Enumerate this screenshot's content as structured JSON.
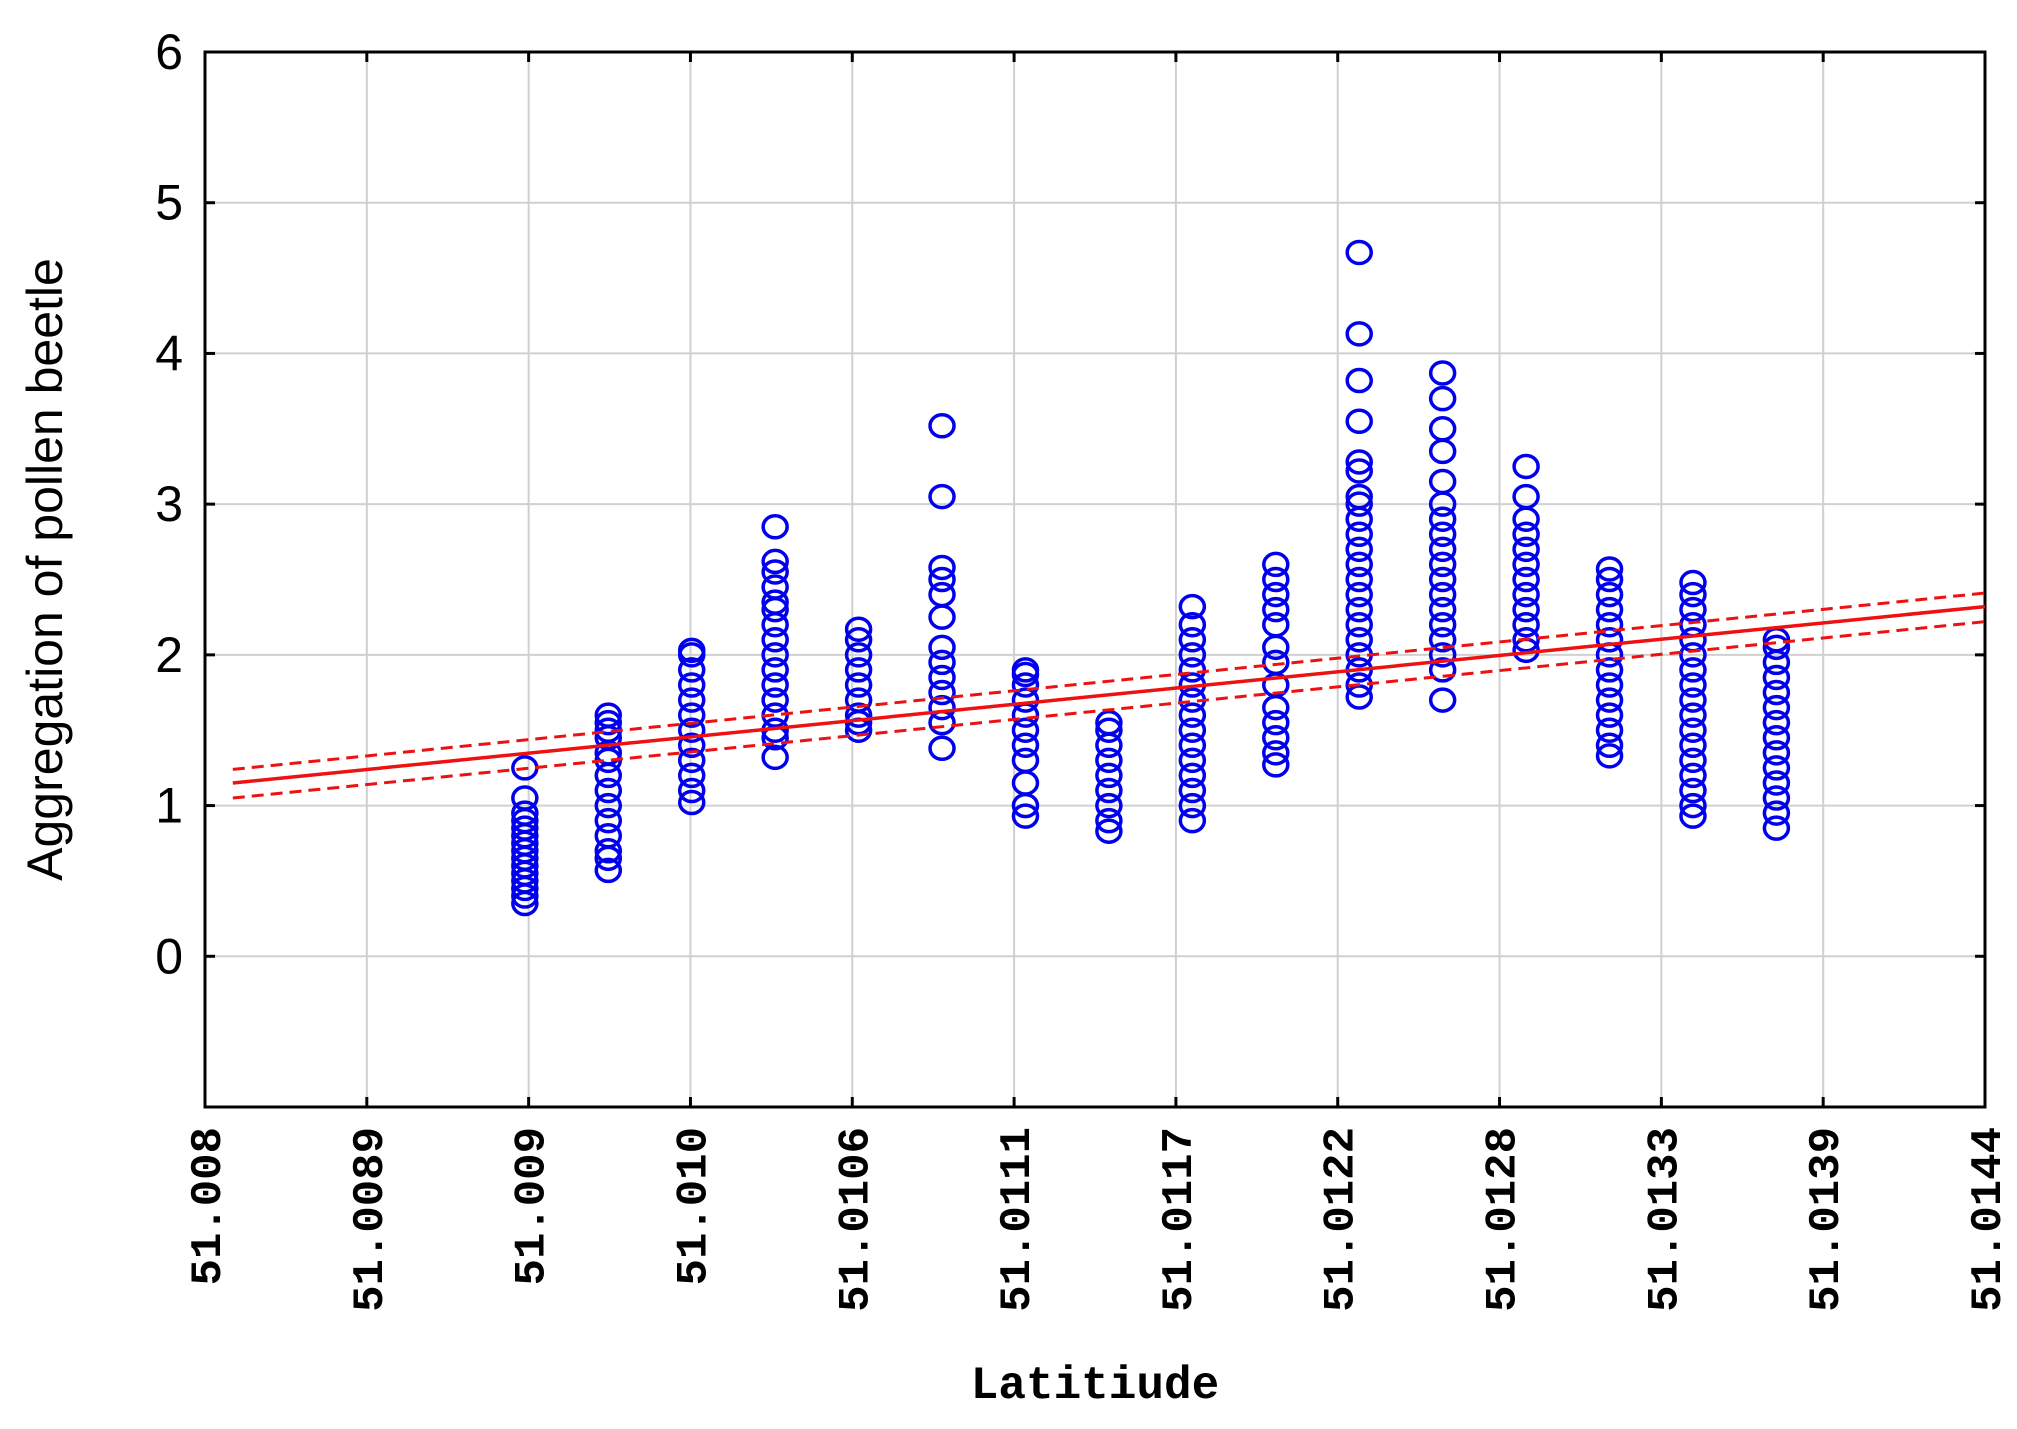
{
  "chart_data": {
    "type": "scatter",
    "title": "",
    "xlabel": "Latitiude",
    "ylabel": "Aggregation of pollen beetle",
    "x_tick_labels": [
      "51.008",
      "51.0089",
      "51.009",
      "51.010",
      "51.0106",
      "51.0111",
      "51.0117",
      "51.0122",
      "51.0128",
      "51.0133",
      "51.0139",
      "51.0144"
    ],
    "y_tick_labels": [
      "0",
      "1",
      "2",
      "3",
      "4",
      "5",
      "6"
    ],
    "y_ticks": [
      0,
      1,
      2,
      3,
      4,
      5,
      6
    ],
    "ylim": [
      -1,
      6
    ],
    "grid": true,
    "marker_color": "#0000ee",
    "fit_color": "#ee1111",
    "scatter_groups": [
      {
        "x": 51.00915,
        "y": [
          0.35,
          0.4,
          0.45,
          0.5,
          0.55,
          0.6,
          0.65,
          0.7,
          0.75,
          0.8,
          0.85,
          0.9,
          0.95,
          1.05,
          1.25
        ]
      },
      {
        "x": 51.00945,
        "y": [
          0.57,
          0.65,
          0.7,
          0.8,
          0.9,
          1.0,
          1.1,
          1.2,
          1.3,
          1.35,
          1.45,
          1.5,
          1.55,
          1.6
        ]
      },
      {
        "x": 51.00975,
        "y": [
          1.02,
          1.1,
          1.2,
          1.3,
          1.4,
          1.5,
          1.6,
          1.7,
          1.8,
          1.9,
          2.0,
          2.03
        ]
      },
      {
        "x": 51.01005,
        "y": [
          1.32,
          1.45,
          1.5,
          1.6,
          1.7,
          1.8,
          1.9,
          2.0,
          2.1,
          2.2,
          2.3,
          2.35,
          2.45,
          2.55,
          2.62,
          2.85
        ]
      },
      {
        "x": 51.01035,
        "y": [
          1.5,
          1.55,
          1.6,
          1.7,
          1.8,
          1.9,
          2.0,
          2.1,
          2.17
        ]
      },
      {
        "x": 51.01065,
        "y": [
          1.38,
          1.55,
          1.65,
          1.75,
          1.85,
          1.95,
          2.05,
          2.25,
          2.4,
          2.5,
          2.58,
          3.05,
          3.52
        ]
      },
      {
        "x": 51.01095,
        "y": [
          0.93,
          1.0,
          1.15,
          1.3,
          1.4,
          1.5,
          1.6,
          1.7,
          1.8,
          1.87,
          1.9
        ]
      },
      {
        "x": 51.01125,
        "y": [
          0.83,
          0.9,
          1.0,
          1.1,
          1.2,
          1.3,
          1.4,
          1.5,
          1.55
        ]
      },
      {
        "x": 51.01155,
        "y": [
          0.9,
          1.0,
          1.1,
          1.2,
          1.3,
          1.4,
          1.5,
          1.6,
          1.7,
          1.8,
          1.9,
          2.0,
          2.1,
          2.2,
          2.32
        ]
      },
      {
        "x": 51.01185,
        "y": [
          1.27,
          1.35,
          1.45,
          1.55,
          1.65,
          1.8,
          1.95,
          2.05,
          2.2,
          2.3,
          2.4,
          2.5,
          2.6
        ]
      },
      {
        "x": 51.01215,
        "y": [
          1.72,
          1.8,
          1.9,
          2.0,
          2.1,
          2.2,
          2.3,
          2.4,
          2.5,
          2.6,
          2.7,
          2.8,
          2.9,
          3.0,
          3.05,
          3.22,
          3.28,
          3.55,
          3.82,
          4.13,
          4.67
        ]
      },
      {
        "x": 51.01245,
        "y": [
          1.7,
          1.9,
          2.0,
          2.1,
          2.2,
          2.3,
          2.4,
          2.5,
          2.6,
          2.7,
          2.8,
          2.9,
          3.0,
          3.15,
          3.35,
          3.5,
          3.7,
          3.87
        ]
      },
      {
        "x": 51.01275,
        "y": [
          2.03,
          2.1,
          2.2,
          2.3,
          2.4,
          2.5,
          2.6,
          2.7,
          2.8,
          2.9,
          3.05,
          3.25
        ]
      },
      {
        "x": 51.01305,
        "y": [
          1.33,
          1.4,
          1.5,
          1.6,
          1.7,
          1.8,
          1.9,
          2.0,
          2.1,
          2.2,
          2.3,
          2.4,
          2.5,
          2.57
        ]
      },
      {
        "x": 51.01335,
        "y": [
          0.93,
          1.0,
          1.1,
          1.2,
          1.3,
          1.4,
          1.5,
          1.6,
          1.7,
          1.8,
          1.9,
          2.0,
          2.1,
          2.2,
          2.3,
          2.4,
          2.48
        ]
      },
      {
        "x": 51.01365,
        "y": [
          0.85,
          0.95,
          1.05,
          1.15,
          1.25,
          1.35,
          1.45,
          1.55,
          1.65,
          1.75,
          1.85,
          1.95,
          2.05,
          2.1
        ]
      }
    ],
    "fit_line": {
      "x": [
        51.0081,
        51.0144
      ],
      "y": [
        1.15,
        2.32
      ]
    },
    "confidence_upper": {
      "x": [
        51.0081,
        51.0144
      ],
      "y": [
        1.24,
        2.41
      ]
    },
    "confidence_lower": {
      "x": [
        51.0081,
        51.0144
      ],
      "y": [
        1.05,
        2.22
      ]
    }
  }
}
